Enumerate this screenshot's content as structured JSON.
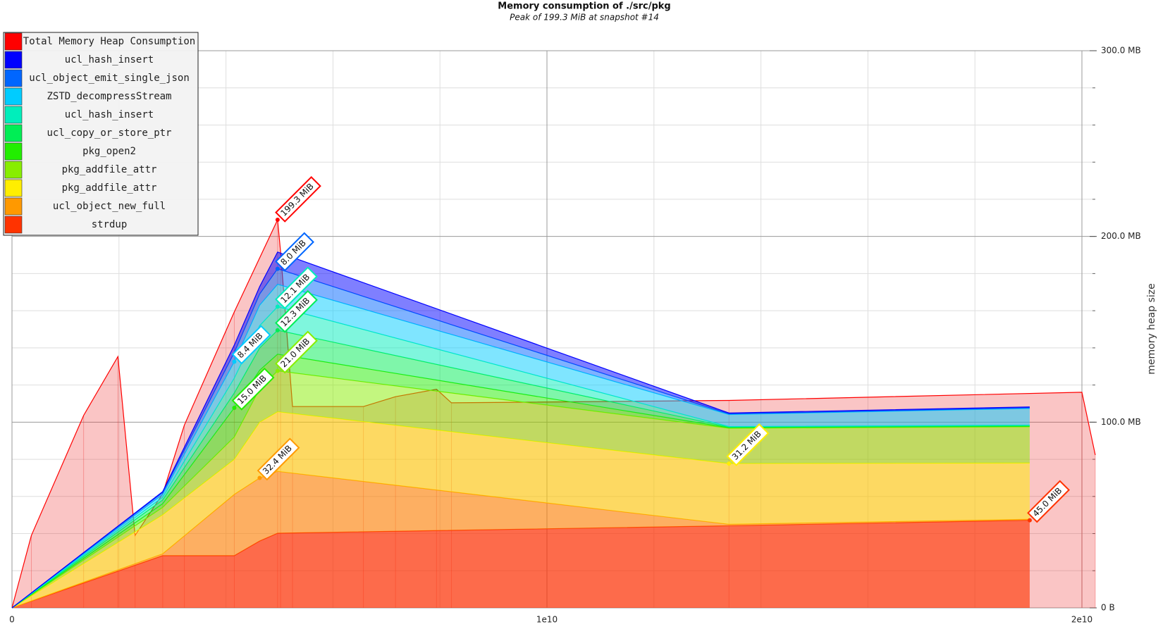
{
  "chart_data": {
    "type": "stacked-area",
    "title": "Memory consumption of ./src/pkg",
    "subtitle": "Peak of 199.3 MiB at snapshot #14",
    "y_label": "memory heap size",
    "x": [
      0,
      2817000000,
      4156000000,
      4630000000,
      4965000000,
      13403000000,
      19024000000
    ],
    "series": [
      {
        "name": "Total Memory Heap Consumption",
        "color": "#ff0000",
        "x": [
          0,
          362600000,
          1339000000,
          1980000000,
          2301000000,
          2817000000,
          3222000000,
          4156000000,
          4965000000,
          5021000000,
          5244000000,
          6569000000,
          7169000000,
          7936000000,
          8215000000,
          13403000000,
          20000000000,
          20250000000
        ],
        "values": [
          0,
          39.0,
          103.6,
          135.3,
          39.0,
          61.4,
          98.4,
          159.4,
          208.98,
          191.6,
          108.4,
          108.4,
          113.7,
          117.7,
          110.4,
          111.7,
          116.1,
          82.3
        ],
        "value_labels": [
          null,
          null,
          null,
          null,
          null,
          null,
          null,
          null,
          "199.3 MiB",
          null,
          null,
          null,
          null,
          null,
          null,
          null,
          null,
          null
        ]
      },
      {
        "name": "strdup",
        "color": "#ff3300",
        "values": [
          0,
          28.1,
          28.1,
          36.0,
          40.2,
          44.2,
          47.19
        ],
        "value_labels": [
          null,
          null,
          null,
          null,
          null,
          null,
          "45.0 MiB"
        ]
      },
      {
        "name": "ucl_object_new_full",
        "color": "#ff9900",
        "values": [
          0,
          1.0,
          33.0,
          33.97,
          33.3,
          0.8,
          0.5
        ],
        "value_labels": [
          null,
          null,
          null,
          "32.4 MiB",
          null,
          null,
          null
        ]
      },
      {
        "name": "pkg_addfile_attr",
        "color": "#ffee00",
        "values": [
          0,
          21.0,
          18.9,
          30.0,
          32.1,
          32.72,
          30.3
        ],
        "value_labels": [
          null,
          null,
          null,
          null,
          null,
          "31.2 MiB",
          null
        ]
      },
      {
        "name": "pkg_addfile_attr",
        "color": "#88ee00",
        "values": [
          0,
          4.0,
          12.0,
          18.0,
          22.0,
          19.0,
          19.5
        ],
        "value_labels": [
          null,
          null,
          null,
          null,
          "21.0 MiB",
          null,
          null
        ]
      },
      {
        "name": "pkg_open2",
        "color": "#22ee00",
        "values": [
          0,
          2.0,
          15.73,
          10.0,
          9.0,
          0.3,
          0.3
        ],
        "value_labels": [
          null,
          null,
          "15.0 MiB",
          null,
          null,
          null,
          null
        ]
      },
      {
        "name": "ucl_copy_or_store_ptr",
        "color": "#00ee55",
        "values": [
          0,
          2.0,
          8.0,
          12.0,
          12.9,
          0.3,
          0.3
        ],
        "value_labels": [
          null,
          null,
          null,
          null,
          "12.3 MiB",
          null,
          null
        ]
      },
      {
        "name": "ucl_hash_insert",
        "color": "#00eebb",
        "values": [
          0,
          1.5,
          8.0,
          12.0,
          12.69,
          0.3,
          0.3
        ],
        "value_labels": [
          null,
          null,
          null,
          null,
          "12.1 MiB",
          null,
          null
        ]
      },
      {
        "name": "ZSTD_decompressStream",
        "color": "#00ccff",
        "values": [
          0,
          1.5,
          8.81,
          11.0,
          12.0,
          6.5,
          9.0
        ],
        "value_labels": [
          null,
          null,
          "8.4 MiB",
          null,
          null,
          null,
          null
        ]
      },
      {
        "name": "ucl_object_emit_single_json",
        "color": "#0066ff",
        "values": [
          0,
          1.0,
          5.0,
          6.0,
          8.39,
          0.3,
          0.3
        ],
        "value_labels": [
          null,
          null,
          null,
          null,
          "8.0 MiB",
          null,
          null
        ]
      },
      {
        "name": "ucl_hash_insert",
        "color": "#0000ff",
        "values": [
          0,
          0.5,
          4.0,
          4.0,
          9.0,
          0.5,
          0.5
        ]
      }
    ],
    "xlim": [
      0,
      20250000000
    ],
    "ylim": [
      0,
      300
    ],
    "xticks": [
      0,
      {
        "value": 10000000000,
        "label": "1e10"
      },
      {
        "value": 20000000000,
        "label": "2e10"
      }
    ],
    "yticks": [
      {
        "value": 0,
        "label": "0 B"
      },
      {
        "value": 100,
        "label": "100.0 MB"
      },
      {
        "value": 200,
        "label": "200.0 MB"
      },
      {
        "value": 300,
        "label": "300.0 MB"
      }
    ],
    "x_minor_ticks": [
      2000000000,
      4000000000,
      6000000000,
      8000000000,
      12000000000,
      14000000000,
      16000000000,
      18000000000
    ],
    "y_minor_ticks": [
      20,
      40,
      60,
      80,
      120,
      140,
      160,
      180,
      220,
      240,
      260,
      280
    ],
    "grid": true,
    "legend": "top-left"
  }
}
